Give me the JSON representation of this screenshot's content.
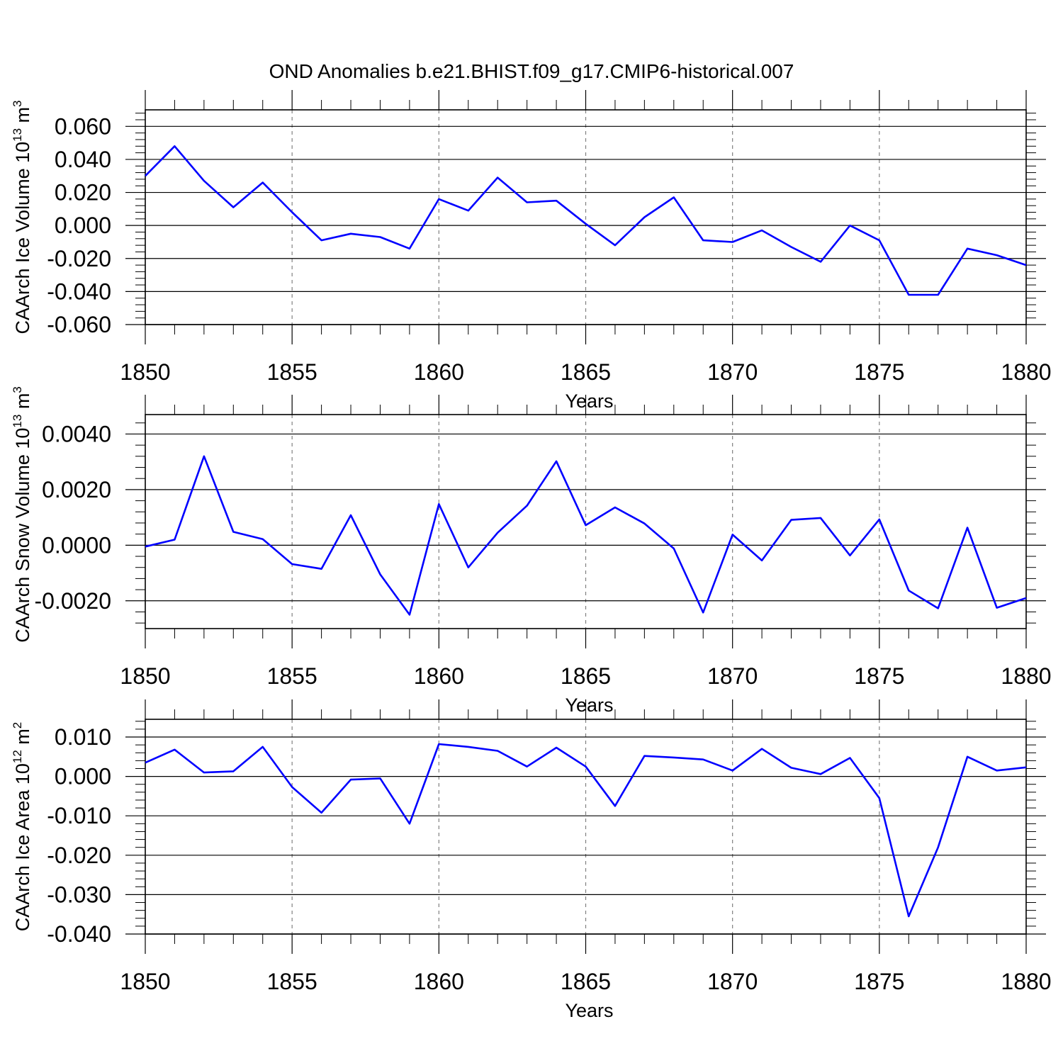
{
  "chart_data": {
    "title": "OND Anomalies b.e21.BHIST.f09_g17.CMIP6-historical.007",
    "panels": [
      {
        "type": "line",
        "ylabel": "CAArch Ice Volume 10",
        "ylabel_exp": "13",
        "ylabel_unit": "m",
        "ylabel_unit_exp": "3",
        "xlabel": "Years",
        "xlim": [
          1850,
          1880
        ],
        "ylim": [
          -0.06,
          0.07
        ],
        "yticks": [
          -0.06,
          -0.04,
          -0.02,
          0.0,
          0.02,
          0.04,
          0.06
        ],
        "ytick_labels": [
          "-0.060",
          "-0.040",
          "-0.020",
          "0.000",
          "0.020",
          "0.040",
          "0.060"
        ],
        "xticks": [
          1850,
          1855,
          1860,
          1865,
          1870,
          1875,
          1880
        ],
        "xtick_labels": [
          "1850",
          "1855",
          "1860",
          "1865",
          "1870",
          "1875",
          "1880"
        ],
        "line_color": "#0000ff",
        "x": [
          1850,
          1851,
          1852,
          1853,
          1854,
          1855,
          1856,
          1857,
          1858,
          1859,
          1860,
          1861,
          1862,
          1863,
          1864,
          1865,
          1866,
          1867,
          1868,
          1869,
          1870,
          1871,
          1872,
          1873,
          1874,
          1875,
          1876,
          1877,
          1878,
          1879,
          1880
        ],
        "y": [
          0.03,
          0.048,
          0.027,
          0.011,
          0.026,
          0.008,
          -0.009,
          -0.005,
          -0.007,
          -0.014,
          0.016,
          0.009,
          0.029,
          0.014,
          0.015,
          0.001,
          -0.012,
          0.005,
          0.017,
          -0.009,
          -0.01,
          -0.003,
          -0.013,
          -0.022,
          0.0,
          -0.009,
          -0.042,
          -0.042,
          -0.014,
          -0.018,
          -0.024
        ]
      },
      {
        "type": "line",
        "ylabel": "CAArch Snow Volume 10",
        "ylabel_exp": "13",
        "ylabel_unit": "m",
        "ylabel_unit_exp": "3",
        "xlabel": "Years",
        "xlim": [
          1850,
          1880
        ],
        "ylim": [
          -0.003,
          0.0047
        ],
        "yticks": [
          -0.002,
          0.0,
          0.002,
          0.004
        ],
        "ytick_labels": [
          "-0.0020",
          "0.0000",
          "0.0020",
          "0.0040"
        ],
        "xticks": [
          1850,
          1855,
          1860,
          1865,
          1870,
          1875,
          1880
        ],
        "xtick_labels": [
          "1850",
          "1855",
          "1860",
          "1865",
          "1870",
          "1875",
          "1880"
        ],
        "line_color": "#0000ff",
        "x": [
          1850,
          1851,
          1852,
          1853,
          1854,
          1855,
          1856,
          1857,
          1858,
          1859,
          1860,
          1861,
          1862,
          1863,
          1864,
          1865,
          1866,
          1867,
          1868,
          1869,
          1870,
          1871,
          1872,
          1873,
          1874,
          1875,
          1876,
          1877,
          1878,
          1879,
          1880
        ],
        "y": [
          -5e-05,
          0.0002,
          0.0032,
          0.00048,
          0.00022,
          -0.00068,
          -0.00085,
          0.00108,
          -0.00105,
          -0.0025,
          0.00148,
          -0.0008,
          0.00045,
          0.00142,
          0.00302,
          0.00072,
          0.00136,
          0.00078,
          -0.00012,
          -0.00242,
          0.00038,
          -0.00055,
          0.00091,
          0.00098,
          -0.00037,
          0.00093,
          -0.00163,
          -0.00227,
          0.00063,
          -0.00225,
          -0.0019
        ]
      },
      {
        "type": "line",
        "ylabel": "CAArch Ice Area 10",
        "ylabel_exp": "12",
        "ylabel_unit": "m",
        "ylabel_unit_exp": "2",
        "xlabel": "Years",
        "xlim": [
          1850,
          1880
        ],
        "ylim": [
          -0.04,
          0.0145
        ],
        "yticks": [
          -0.04,
          -0.03,
          -0.02,
          -0.01,
          0.0,
          0.01
        ],
        "ytick_labels": [
          "-0.040",
          "-0.030",
          "-0.020",
          "-0.010",
          "0.000",
          "0.010"
        ],
        "xticks": [
          1850,
          1855,
          1860,
          1865,
          1870,
          1875,
          1880
        ],
        "xtick_labels": [
          "1850",
          "1855",
          "1860",
          "1865",
          "1870",
          "1875",
          "1880"
        ],
        "line_color": "#0000ff",
        "x": [
          1850,
          1851,
          1852,
          1853,
          1854,
          1855,
          1856,
          1857,
          1858,
          1859,
          1860,
          1861,
          1862,
          1863,
          1864,
          1865,
          1866,
          1867,
          1868,
          1869,
          1870,
          1871,
          1872,
          1873,
          1874,
          1875,
          1876,
          1877,
          1878,
          1879,
          1880
        ],
        "y": [
          0.0035,
          0.0068,
          0.001,
          0.0013,
          0.0075,
          -0.0027,
          -0.0092,
          -0.0008,
          -0.0005,
          -0.012,
          0.0082,
          0.0075,
          0.0065,
          0.0025,
          0.0073,
          0.0025,
          -0.0075,
          0.0052,
          0.0048,
          0.0043,
          0.0015,
          0.007,
          0.0022,
          0.0006,
          0.0047,
          -0.0055,
          -0.0355,
          -0.018,
          0.005,
          0.0015,
          0.0023
        ]
      }
    ]
  }
}
